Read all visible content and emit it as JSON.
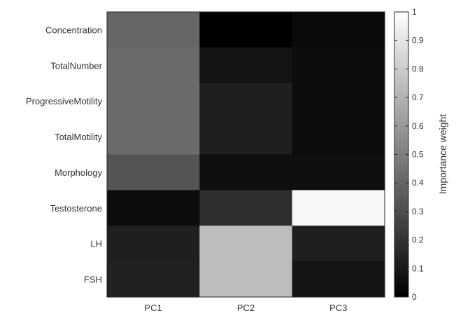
{
  "chart_data": {
    "type": "heatmap",
    "x_categories": [
      "PC1",
      "PC2",
      "PC3"
    ],
    "y_categories": [
      "Concentration",
      "TotalNumber",
      "ProgressiveMotility",
      "TotalMotility",
      "Morphology",
      "Testosterone",
      "LH",
      "FSH"
    ],
    "values": [
      [
        0.4,
        0.0,
        0.04
      ],
      [
        0.42,
        0.08,
        0.05
      ],
      [
        0.42,
        0.12,
        0.05
      ],
      [
        0.42,
        0.12,
        0.05
      ],
      [
        0.33,
        0.06,
        0.06
      ],
      [
        0.05,
        0.18,
        0.97
      ],
      [
        0.12,
        0.74,
        0.12
      ],
      [
        0.13,
        0.74,
        0.08
      ]
    ],
    "colorbar": {
      "label": "Importance weight",
      "ticks": [
        "0",
        "0.1",
        "0.2",
        "0.3",
        "0.4",
        "0.5",
        "0.6",
        "0.7",
        "0.8",
        "0.9",
        "1"
      ],
      "range": [
        0,
        1
      ],
      "colormap": "gray"
    }
  }
}
